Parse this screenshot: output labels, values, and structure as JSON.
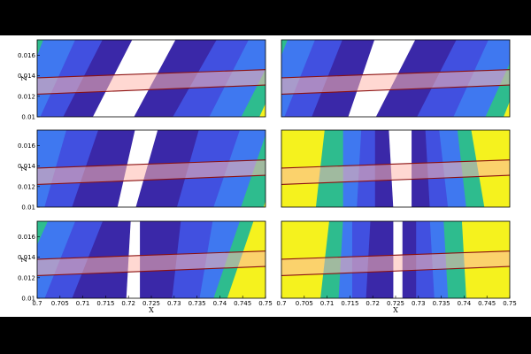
{
  "colors": {
    "background": "#000000",
    "figure": "#ffffff",
    "band_fill": "#ffb8ad",
    "band_line": "#8b1010",
    "bands": [
      "#ffffff",
      "#3a28a8",
      "#4150e0",
      "#3f78f0",
      "#2ebc8e",
      "#f5f21e"
    ]
  },
  "chart_data": {
    "type": "heatmap",
    "layout": "3x2",
    "xlabel": "X",
    "ylabel": "Z",
    "xlim": [
      0.7,
      0.75
    ],
    "ylim": [
      0.01,
      0.0175
    ],
    "xticks": [
      "0.7",
      "0.705",
      "0.71",
      "0.715",
      "0.72",
      "0.725",
      "0.73",
      "0.735",
      "0.74",
      "0.745",
      "0.75"
    ],
    "yticks": [
      "0.01",
      "0.012",
      "0.014",
      "0.016"
    ],
    "band_ytop_at_xlim": [
      0.0138,
      0.0146
    ],
    "band_ybottom_at_xlim": [
      0.0122,
      0.0131
    ],
    "panels": [
      {
        "row": 0,
        "col": 0,
        "boundaries": [
          {
            "inner": [
              0.712,
              0.721
            ],
            "outer": [
              0.721,
              0.7305
            ]
          },
          {
            "inner": [
              0.7055,
              0.7145
            ],
            "outer": [
              0.7295,
              0.7395
            ]
          },
          {
            "inner": [
              0.7005,
              0.7085
            ],
            "outer": [
              0.7375,
              0.7465
            ]
          },
          {
            "inner": [
              0.6945,
              0.7015
            ],
            "outer": [
              0.7445,
              0.7535
            ]
          },
          {
            "inner": [
              0.6945,
              0.6985
            ],
            "outer": [
              0.7485,
              0.7565
            ]
          }
        ]
      },
      {
        "row": 0,
        "col": 1,
        "boundaries": [
          {
            "inner": [
              0.7145,
              0.7205
            ],
            "outer": [
              0.7205,
              0.7295
            ]
          },
          {
            "inner": [
              0.7065,
              0.7135
            ],
            "outer": [
              0.7295,
              0.7385
            ]
          },
          {
            "inner": [
              0.7005,
              0.7075
            ],
            "outer": [
              0.7375,
              0.7455
            ]
          },
          {
            "inner": [
              0.6945,
              0.7015
            ],
            "outer": [
              0.7445,
              0.7525
            ]
          },
          {
            "inner": [
              0.6945,
              0.6985
            ],
            "outer": [
              0.7485,
              0.7555
            ]
          }
        ]
      },
      {
        "row": 1,
        "col": 0,
        "boundaries": [
          {
            "inner": [
              0.7175,
              0.7215
            ],
            "outer": [
              0.7215,
              0.7265
            ]
          },
          {
            "inner": [
              0.7075,
              0.7135
            ],
            "outer": [
              0.7305,
              0.7355
            ]
          },
          {
            "inner": [
              0.7015,
              0.7065
            ],
            "outer": [
              0.7385,
              0.7445
            ]
          },
          {
            "inner": [
              0.6955,
              0.6995
            ],
            "outer": [
              0.7445,
              0.7505
            ]
          },
          {
            "inner": [
              0.6945,
              0.6965
            ],
            "outer": [
              0.7495,
              0.7545
            ]
          }
        ]
      },
      {
        "row": 1,
        "col": 1,
        "boundaries": [
          {
            "inner": [
              0.7245,
              0.7235
            ],
            "outer": [
              0.7285,
              0.7285
            ]
          },
          {
            "inner": [
              0.7205,
              0.7205
            ],
            "outer": [
              0.7325,
              0.7315
            ]
          },
          {
            "inner": [
              0.7165,
              0.7175
            ],
            "outer": [
              0.7365,
              0.7345
            ]
          },
          {
            "inner": [
              0.7135,
              0.7135
            ],
            "outer": [
              0.7405,
              0.7385
            ]
          },
          {
            "inner": [
              0.7075,
              0.7095
            ],
            "outer": [
              0.7445,
              0.7415
            ]
          }
        ]
      },
      {
        "row": 2,
        "col": 0,
        "boundaries": [
          {
            "inner": [
              0.7195,
              0.7205
            ],
            "outer": [
              0.7225,
              0.7225
            ]
          },
          {
            "inner": [
              0.7075,
              0.7145
            ],
            "outer": [
              0.7295,
              0.7315
            ]
          },
          {
            "inner": [
              0.7015,
              0.7085
            ],
            "outer": [
              0.7355,
              0.7385
            ]
          },
          {
            "inner": [
              0.6945,
              0.7025
            ],
            "outer": [
              0.7385,
              0.7445
            ]
          },
          {
            "inner": [
              0.6945,
              0.6965
            ],
            "outer": [
              0.7415,
              0.7475
            ]
          }
        ]
      },
      {
        "row": 2,
        "col": 1,
        "boundaries": [
          {
            "inner": [
              0.7245,
              0.7245
            ],
            "outer": [
              0.7265,
              0.7265
            ]
          },
          {
            "inner": [
              0.7185,
              0.7195
            ],
            "outer": [
              0.7295,
              0.7295
            ]
          },
          {
            "inner": [
              0.7155,
              0.7155
            ],
            "outer": [
              0.7335,
              0.7325
            ]
          },
          {
            "inner": [
              0.7125,
              0.7135
            ],
            "outer": [
              0.7365,
              0.7355
            ]
          },
          {
            "inner": [
              0.7085,
              0.7105
            ],
            "outer": [
              0.7405,
              0.7395
            ]
          }
        ]
      }
    ]
  }
}
